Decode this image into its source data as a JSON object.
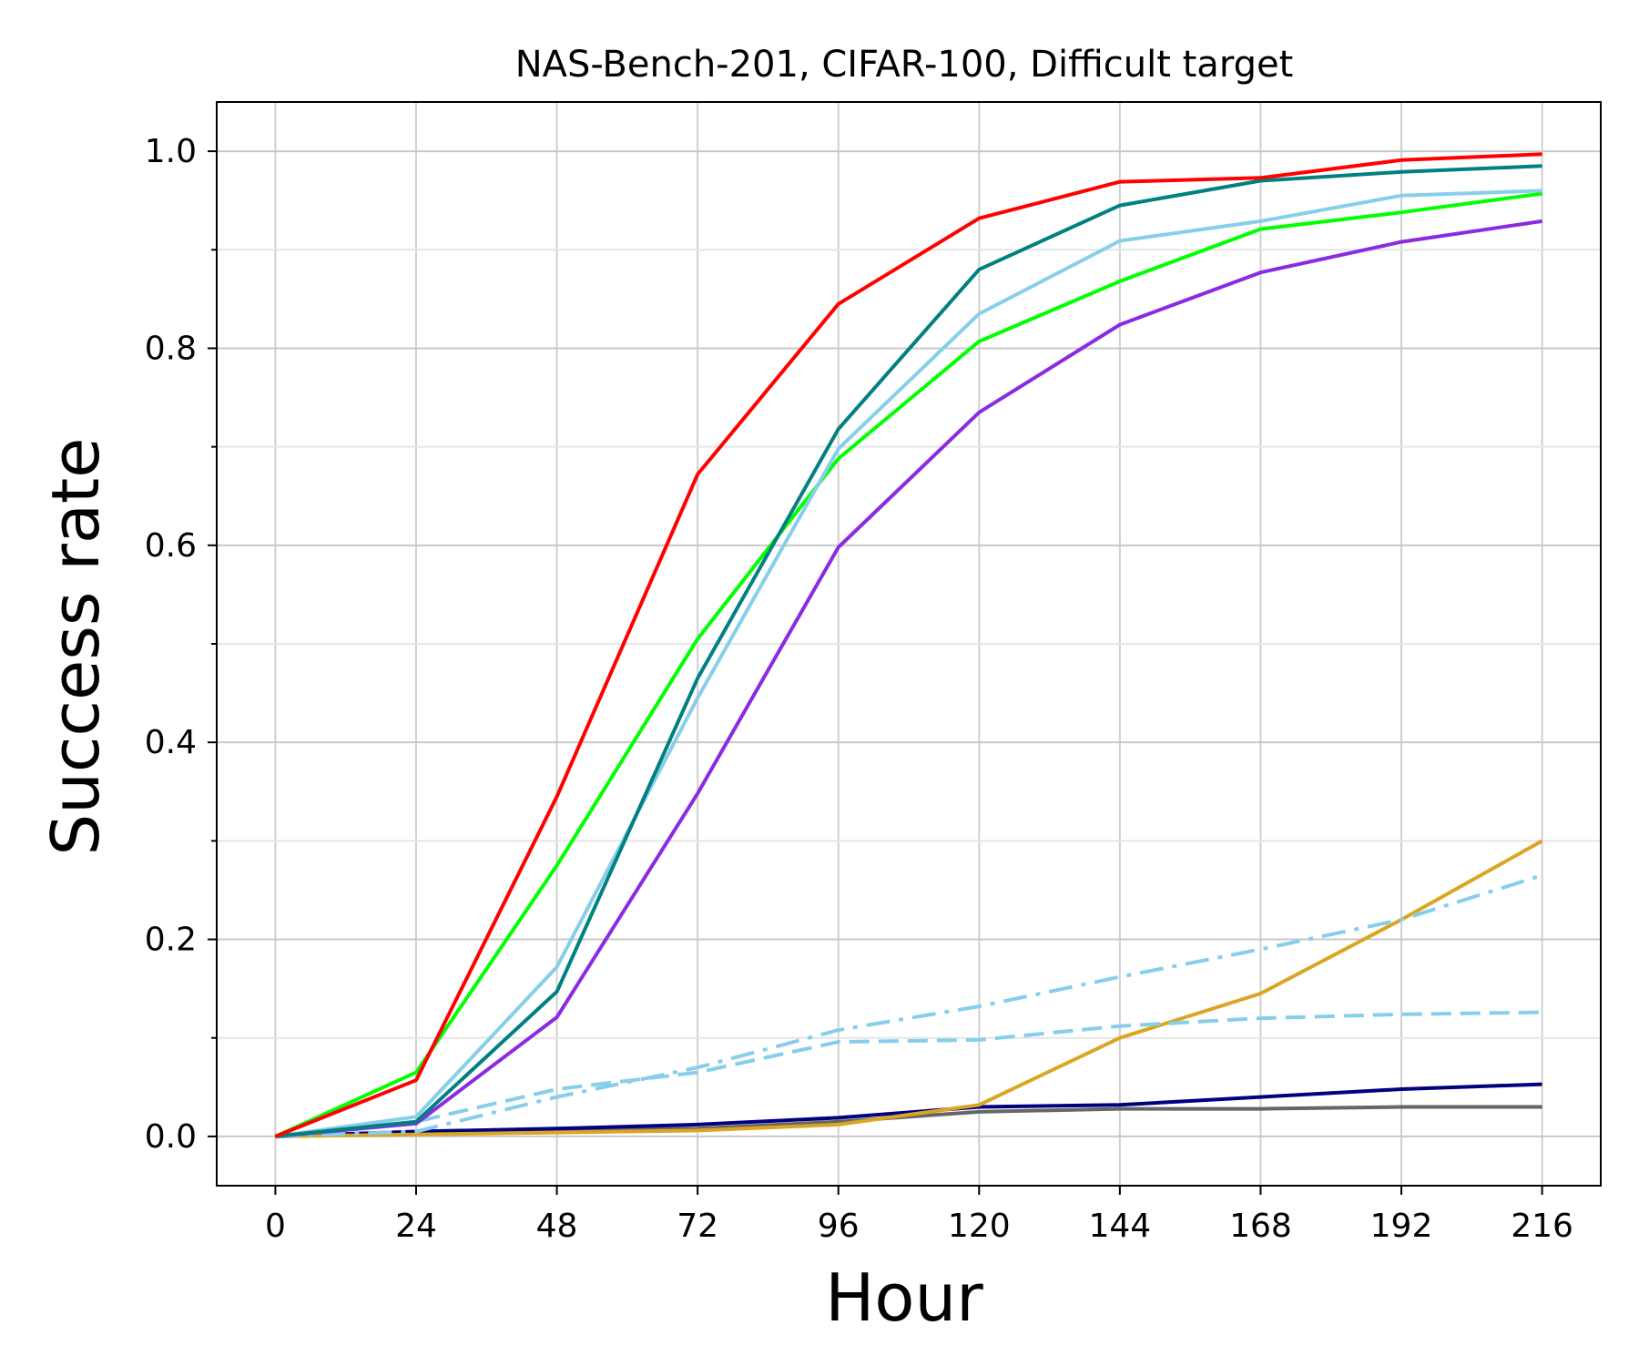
{
  "chart_data": {
    "type": "line",
    "title": "NAS-Bench-201, CIFAR-100, Difficult target",
    "xlabel": "Hour",
    "ylabel": "Success rate",
    "xlim": [
      -10,
      226
    ],
    "ylim": [
      -0.05,
      1.05
    ],
    "x": [
      0,
      24,
      48,
      72,
      96,
      120,
      144,
      168,
      192,
      216
    ],
    "xticks": [
      "0",
      "24",
      "48",
      "72",
      "96",
      "120",
      "144",
      "168",
      "192",
      "216"
    ],
    "yticks": [
      "0.0",
      "0.2",
      "0.4",
      "0.6",
      "0.8",
      "1.0"
    ],
    "grid": true,
    "series": [
      {
        "name": "gray",
        "color": "#666666",
        "style": "solid",
        "values": [
          0.0,
          0.003,
          0.006,
          0.008,
          0.015,
          0.025,
          0.028,
          0.028,
          0.03,
          0.03
        ]
      },
      {
        "name": "navy",
        "color": "#000080",
        "style": "solid",
        "values": [
          0.0,
          0.005,
          0.008,
          0.012,
          0.019,
          0.03,
          0.032,
          0.04,
          0.048,
          0.053
        ]
      },
      {
        "name": "goldenrod",
        "color": "#DAA520",
        "style": "solid",
        "values": [
          0.0,
          0.002,
          0.004,
          0.006,
          0.012,
          0.032,
          0.1,
          0.145,
          0.22,
          0.3
        ]
      },
      {
        "name": "skyblue-dashdot",
        "color": "#87CEEB",
        "style": "dashdot",
        "values": [
          0.0,
          0.005,
          0.04,
          0.07,
          0.108,
          0.132,
          0.162,
          0.19,
          0.22,
          0.265
        ]
      },
      {
        "name": "skyblue-dashed",
        "color": "#87CEEB",
        "style": "dashed",
        "values": [
          0.0,
          0.015,
          0.048,
          0.065,
          0.096,
          0.098,
          0.112,
          0.12,
          0.124,
          0.126
        ]
      },
      {
        "name": "blueviolet",
        "color": "#8A2BE2",
        "style": "solid",
        "values": [
          0.0,
          0.013,
          0.121,
          0.348,
          0.598,
          0.735,
          0.824,
          0.877,
          0.908,
          0.929
        ]
      },
      {
        "name": "lime",
        "color": "#00FF00",
        "style": "solid",
        "values": [
          0.0,
          0.065,
          0.275,
          0.505,
          0.688,
          0.807,
          0.868,
          0.921,
          0.938,
          0.957
        ]
      },
      {
        "name": "skyblue",
        "color": "#87CEEB",
        "style": "solid",
        "values": [
          0.0,
          0.02,
          0.172,
          0.445,
          0.698,
          0.835,
          0.909,
          0.929,
          0.955,
          0.96
        ]
      },
      {
        "name": "teal",
        "color": "#008080",
        "style": "solid",
        "values": [
          0.0,
          0.015,
          0.147,
          0.465,
          0.718,
          0.88,
          0.945,
          0.97,
          0.979,
          0.985
        ]
      },
      {
        "name": "red",
        "color": "#FF0000",
        "style": "solid",
        "values": [
          0.0,
          0.057,
          0.345,
          0.672,
          0.845,
          0.932,
          0.969,
          0.973,
          0.991,
          0.997
        ]
      }
    ]
  }
}
